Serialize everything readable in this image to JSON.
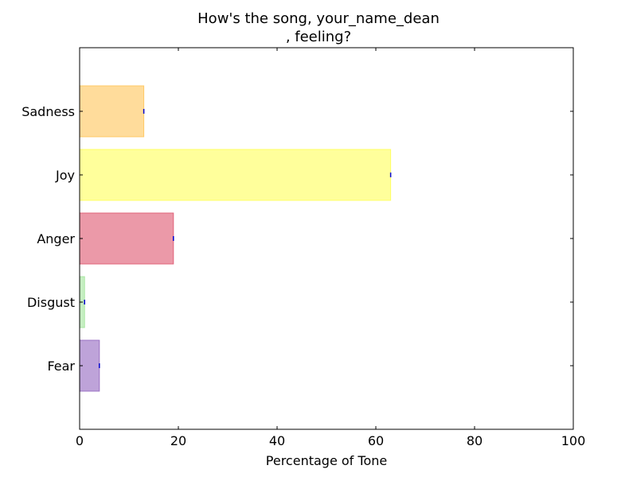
{
  "chart_data": {
    "type": "bar",
    "orientation": "horizontal",
    "title_lines": [
      "How's the song, your_name_dean",
      ", feeling?"
    ],
    "xlabel": "Percentage of Tone",
    "ylabel": "",
    "xlim": [
      0,
      100
    ],
    "x_ticks": [
      0,
      20,
      40,
      60,
      80,
      100
    ],
    "grid": false,
    "categories": [
      "Fear",
      "Disgust",
      "Anger",
      "Joy",
      "Sadness"
    ],
    "values": [
      4,
      1,
      19,
      63,
      13
    ],
    "colors": [
      "#9b72c4",
      "#a8e6a1",
      "#e0637a",
      "#ffff66",
      "#ffc966"
    ],
    "edge_colors": [
      "#9b72c4",
      "#a8e6a1",
      "#e0637a",
      "#ffff66",
      "#ffc966"
    ]
  }
}
